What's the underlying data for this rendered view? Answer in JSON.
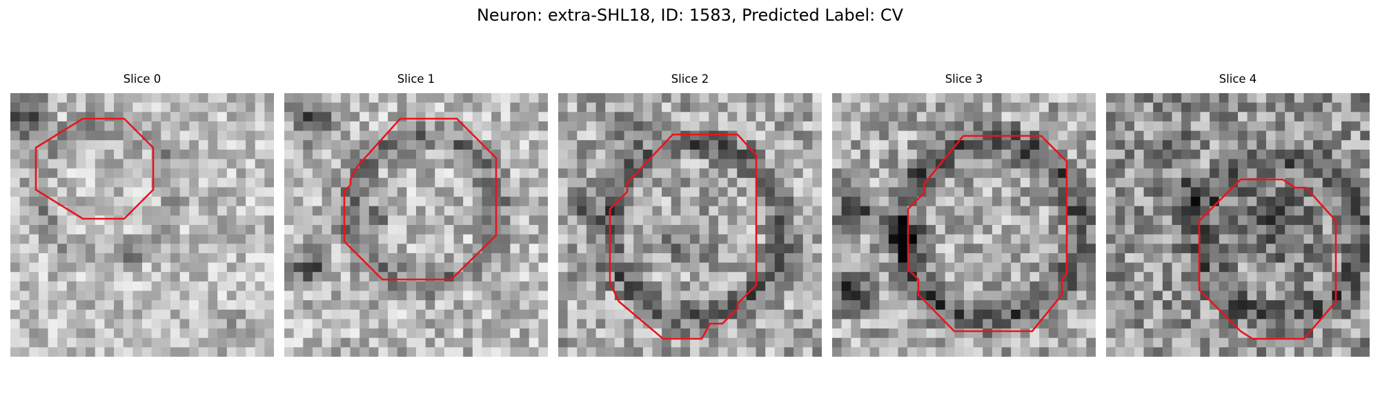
{
  "figure": {
    "title": "Neuron: extra-SHL18, ID: 1583, Predicted Label: CV",
    "outline_color": "#e8141c"
  },
  "panels": [
    {
      "title": "Slice 0",
      "image": "grayscale-microscopy-patch",
      "outline": "red-octagon-outline"
    },
    {
      "title": "Slice 1",
      "image": "grayscale-microscopy-patch",
      "outline": "red-octagon-outline"
    },
    {
      "title": "Slice 2",
      "image": "grayscale-microscopy-patch",
      "outline": "red-octagon-outline"
    },
    {
      "title": "Slice 3",
      "image": "grayscale-microscopy-patch",
      "outline": "red-octagon-outline"
    },
    {
      "title": "Slice 4",
      "image": "grayscale-microscopy-patch",
      "outline": "red-octagon-outline"
    }
  ]
}
